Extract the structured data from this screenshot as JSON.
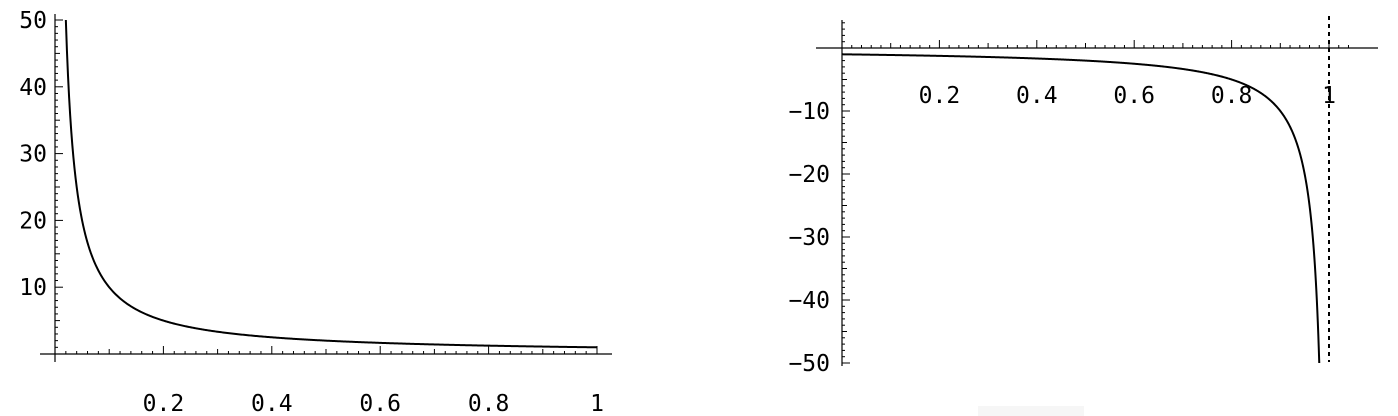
{
  "chart_data": [
    {
      "type": "line",
      "title": "",
      "xlabel": "",
      "ylabel": "",
      "xlim": [
        0,
        1
      ],
      "ylim": [
        0,
        50
      ],
      "grid": false,
      "x_ticks": [
        0.2,
        0.4,
        0.6,
        0.8,
        1
      ],
      "x_tick_labels": [
        "0.2",
        "0.4",
        "0.6",
        "0.8",
        "1"
      ],
      "y_ticks": [
        10,
        20,
        30,
        40,
        50
      ],
      "y_tick_labels": [
        "10",
        "20",
        "30",
        "40",
        "50"
      ],
      "series": [
        {
          "x": [
            0.02,
            0.03,
            0.04,
            0.05,
            0.06,
            0.08,
            0.1,
            0.12,
            0.15,
            0.2,
            0.25,
            0.3,
            0.4,
            0.5,
            0.6,
            0.7,
            0.8,
            0.9,
            1.0
          ],
          "y": [
            50,
            33.3,
            25,
            20,
            16.7,
            12.5,
            10,
            8.3,
            6.7,
            5,
            4,
            3.3,
            2.5,
            2,
            1.7,
            1.4,
            1.25,
            1.1,
            1
          ]
        }
      ]
    },
    {
      "type": "line",
      "title": "",
      "xlabel": "",
      "ylabel": "",
      "xlim": [
        0,
        1.05
      ],
      "ylim": [
        -50,
        2
      ],
      "grid": false,
      "x_ticks": [
        0.2,
        0.4,
        0.6,
        0.8,
        1
      ],
      "x_tick_labels": [
        "0.2",
        "0.4",
        "0.6",
        "0.8",
        "1"
      ],
      "y_ticks": [
        -10,
        -20,
        -30,
        -40,
        -50
      ],
      "y_tick_labels": [
        "-10",
        "-20",
        "-30",
        "-40",
        "-50"
      ],
      "vertical_line": {
        "x": 1,
        "style": "dashed"
      },
      "series": [
        {
          "x": [
            0,
            0.1,
            0.2,
            0.3,
            0.4,
            0.5,
            0.6,
            0.7,
            0.8,
            0.85,
            0.9,
            0.93,
            0.95,
            0.96,
            0.97,
            0.98
          ],
          "y": [
            -1,
            -1.1,
            -1.25,
            -1.4,
            -1.7,
            -2,
            -2.5,
            -3.3,
            -5,
            -6.7,
            -10,
            -14.3,
            -20,
            -25,
            -33.3,
            -50
          ]
        }
      ]
    }
  ]
}
